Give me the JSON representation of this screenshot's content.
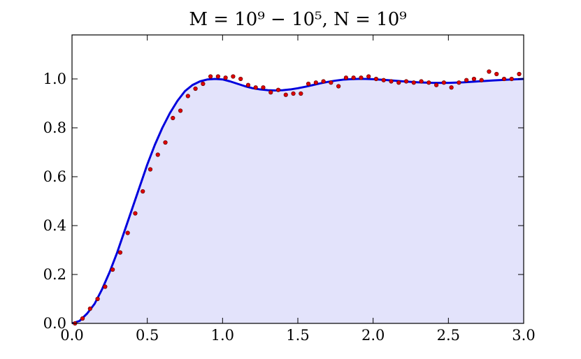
{
  "chart_data": {
    "type": "line",
    "title": "M = 10⁹ − 10⁵, N = 10⁹",
    "xlabel": "",
    "ylabel": "",
    "xlim": [
      0.0,
      3.0
    ],
    "ylim": [
      0.0,
      1.18
    ],
    "x_ticks": [
      "0.0",
      "0.5",
      "1.0",
      "1.5",
      "2.0",
      "2.5",
      "3.0"
    ],
    "x_tick_values": [
      0.0,
      0.5,
      1.0,
      1.5,
      2.0,
      2.5,
      3.0
    ],
    "y_ticks": [
      "0.0",
      "0.2",
      "0.4",
      "0.6",
      "0.8",
      "1.0"
    ],
    "y_tick_values": [
      0.0,
      0.2,
      0.4,
      0.6,
      0.8,
      1.0
    ],
    "grid": false,
    "colors": {
      "curve": "#0000dd",
      "fill": "#e3e3fb",
      "points": "#dd0000",
      "point_edge": "#550000"
    },
    "series": [
      {
        "kind": "curve",
        "x": [
          0.0,
          0.05,
          0.1,
          0.15,
          0.2,
          0.25,
          0.3,
          0.35,
          0.4,
          0.45,
          0.5,
          0.55,
          0.6,
          0.65,
          0.7,
          0.75,
          0.8,
          0.85,
          0.9,
          0.95,
          1.0,
          1.05,
          1.1,
          1.15,
          1.2,
          1.25,
          1.3,
          1.35,
          1.4,
          1.45,
          1.5,
          1.55,
          1.6,
          1.65,
          1.7,
          1.75,
          1.8,
          1.85,
          1.9,
          1.95,
          2.0,
          2.1,
          2.2,
          2.3,
          2.4,
          2.5,
          2.6,
          2.7,
          2.8,
          2.9,
          3.0
        ],
        "y": [
          0.0,
          0.01,
          0.04,
          0.08,
          0.14,
          0.21,
          0.29,
          0.38,
          0.47,
          0.56,
          0.65,
          0.73,
          0.8,
          0.86,
          0.91,
          0.95,
          0.975,
          0.99,
          0.998,
          1.0,
          0.998,
          0.99,
          0.98,
          0.97,
          0.962,
          0.957,
          0.954,
          0.953,
          0.954,
          0.957,
          0.962,
          0.968,
          0.975,
          0.982,
          0.988,
          0.993,
          0.997,
          0.999,
          1.0,
          1.0,
          0.999,
          0.995,
          0.99,
          0.986,
          0.984,
          0.984,
          0.986,
          0.99,
          0.994,
          0.997,
          1.0
        ]
      },
      {
        "kind": "points",
        "x": [
          0.02,
          0.07,
          0.12,
          0.17,
          0.22,
          0.27,
          0.32,
          0.37,
          0.42,
          0.47,
          0.52,
          0.57,
          0.62,
          0.67,
          0.72,
          0.77,
          0.82,
          0.87,
          0.92,
          0.97,
          1.02,
          1.07,
          1.12,
          1.17,
          1.22,
          1.27,
          1.32,
          1.37,
          1.42,
          1.47,
          1.52,
          1.57,
          1.62,
          1.67,
          1.72,
          1.77,
          1.82,
          1.87,
          1.92,
          1.97,
          2.02,
          2.07,
          2.12,
          2.17,
          2.22,
          2.27,
          2.32,
          2.37,
          2.42,
          2.47,
          2.52,
          2.57,
          2.62,
          2.67,
          2.72,
          2.77,
          2.82,
          2.87,
          2.92,
          2.97
        ],
        "y": [
          0.0,
          0.02,
          0.06,
          0.1,
          0.15,
          0.22,
          0.29,
          0.37,
          0.45,
          0.54,
          0.63,
          0.69,
          0.74,
          0.84,
          0.87,
          0.93,
          0.96,
          0.98,
          1.01,
          1.01,
          1.005,
          1.01,
          1.0,
          0.975,
          0.965,
          0.965,
          0.945,
          0.955,
          0.935,
          0.94,
          0.94,
          0.98,
          0.985,
          0.99,
          0.985,
          0.97,
          1.005,
          1.005,
          1.005,
          1.01,
          1.0,
          0.995,
          0.99,
          0.985,
          0.99,
          0.985,
          0.99,
          0.985,
          0.975,
          0.985,
          0.965,
          0.985,
          0.995,
          1.0,
          0.995,
          1.03,
          1.02,
          1.0,
          1.0,
          1.02
        ]
      }
    ]
  }
}
